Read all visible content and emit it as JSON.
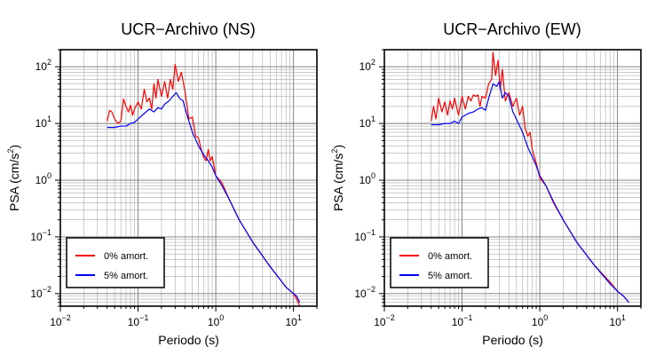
{
  "chart_data": [
    {
      "type": "line",
      "title": "UCR−Archivo (NS)",
      "xlabel": "Periodo (s)",
      "ylabel": {
        "prefix": "PSA (cm/s",
        "sup": "2",
        "suffix": ")"
      },
      "xscale": "log",
      "yscale": "log",
      "xlim": [
        0.01,
        20
      ],
      "ylim": [
        0.006,
        200
      ],
      "grid": true,
      "legend_position": "bottom-left",
      "x_ticks": [
        {
          "value": 0.01,
          "base": "10",
          "exp": "−2"
        },
        {
          "value": 0.1,
          "base": "10",
          "exp": "−1"
        },
        {
          "value": 1,
          "base": "10",
          "exp": "0"
        },
        {
          "value": 10,
          "base": "10",
          "exp": "1"
        }
      ],
      "y_ticks": [
        {
          "value": 0.01,
          "base": "10",
          "exp": "−2"
        },
        {
          "value": 0.1,
          "base": "10",
          "exp": "−1"
        },
        {
          "value": 1,
          "base": "10",
          "exp": "0"
        },
        {
          "value": 10,
          "base": "10",
          "exp": "1"
        },
        {
          "value": 100,
          "base": "10",
          "exp": "2"
        }
      ],
      "series": [
        {
          "name": "0% amort.",
          "color": "#ff0000",
          "points": [
            [
              0.04,
              11
            ],
            [
              0.043,
              17
            ],
            [
              0.046,
              16
            ],
            [
              0.05,
              12
            ],
            [
              0.055,
              10
            ],
            [
              0.06,
              11
            ],
            [
              0.065,
              27
            ],
            [
              0.07,
              20
            ],
            [
              0.075,
              16
            ],
            [
              0.08,
              21
            ],
            [
              0.085,
              14
            ],
            [
              0.09,
              18
            ],
            [
              0.1,
              24
            ],
            [
              0.11,
              18
            ],
            [
              0.12,
              40
            ],
            [
              0.13,
              24
            ],
            [
              0.14,
              28
            ],
            [
              0.15,
              18
            ],
            [
              0.16,
              50
            ],
            [
              0.17,
              28
            ],
            [
              0.18,
              60
            ],
            [
              0.2,
              30
            ],
            [
              0.22,
              55
            ],
            [
              0.24,
              28
            ],
            [
              0.26,
              60
            ],
            [
              0.28,
              40
            ],
            [
              0.3,
              110
            ],
            [
              0.33,
              55
            ],
            [
              0.36,
              80
            ],
            [
              0.4,
              38
            ],
            [
              0.45,
              12
            ],
            [
              0.5,
              13
            ],
            [
              0.55,
              6
            ],
            [
              0.6,
              5.5
            ],
            [
              0.65,
              3.5
            ],
            [
              0.7,
              2.5
            ],
            [
              0.75,
              2.2
            ],
            [
              0.8,
              3.5
            ],
            [
              0.85,
              2.2
            ],
            [
              0.9,
              2.6
            ],
            [
              1,
              1.2
            ],
            [
              1.2,
              0.9
            ],
            [
              1.5,
              0.45
            ],
            [
              2,
              0.2
            ],
            [
              3,
              0.08
            ],
            [
              5,
              0.03
            ],
            [
              8,
              0.013
            ],
            [
              10,
              0.01
            ],
            [
              11,
              0.008
            ],
            [
              12,
              0.006
            ]
          ]
        },
        {
          "name": "5% amort.",
          "color": "#0000ff",
          "points": [
            [
              0.04,
              8.5
            ],
            [
              0.05,
              8.5
            ],
            [
              0.06,
              9
            ],
            [
              0.07,
              9
            ],
            [
              0.08,
              10
            ],
            [
              0.09,
              10.5
            ],
            [
              0.1,
              12
            ],
            [
              0.12,
              15
            ],
            [
              0.14,
              18
            ],
            [
              0.16,
              16
            ],
            [
              0.18,
              19
            ],
            [
              0.2,
              18
            ],
            [
              0.22,
              22
            ],
            [
              0.25,
              25
            ],
            [
              0.28,
              30
            ],
            [
              0.31,
              35
            ],
            [
              0.34,
              28
            ],
            [
              0.38,
              25
            ],
            [
              0.42,
              15
            ],
            [
              0.5,
              7
            ],
            [
              0.6,
              4
            ],
            [
              0.7,
              2.8
            ],
            [
              0.8,
              2.2
            ],
            [
              0.9,
              1.7
            ],
            [
              1,
              1.2
            ],
            [
              1.2,
              0.8
            ],
            [
              1.5,
              0.45
            ],
            [
              2,
              0.2
            ],
            [
              3,
              0.08
            ],
            [
              5,
              0.03
            ],
            [
              8,
              0.013
            ],
            [
              10,
              0.01
            ],
            [
              11,
              0.009
            ],
            [
              12,
              0.007
            ]
          ]
        }
      ]
    },
    {
      "type": "line",
      "title": "UCR−Archivo (EW)",
      "xlabel": "Periodo (s)",
      "ylabel": {
        "prefix": "PSA (cm/s",
        "sup": "2",
        "suffix": ")"
      },
      "xscale": "log",
      "yscale": "log",
      "xlim": [
        0.01,
        20
      ],
      "ylim": [
        0.006,
        200
      ],
      "grid": true,
      "legend_position": "bottom-left",
      "x_ticks": [
        {
          "value": 0.01,
          "base": "10",
          "exp": "−2"
        },
        {
          "value": 0.1,
          "base": "10",
          "exp": "−1"
        },
        {
          "value": 1,
          "base": "10",
          "exp": "0"
        },
        {
          "value": 10,
          "base": "10",
          "exp": "1"
        }
      ],
      "y_ticks": [
        {
          "value": 0.01,
          "base": "10",
          "exp": "−2"
        },
        {
          "value": 0.1,
          "base": "10",
          "exp": "−1"
        },
        {
          "value": 1,
          "base": "10",
          "exp": "0"
        },
        {
          "value": 10,
          "base": "10",
          "exp": "1"
        },
        {
          "value": 100,
          "base": "10",
          "exp": "2"
        }
      ],
      "series": [
        {
          "name": "0% amort.",
          "color": "#ff0000",
          "points": [
            [
              0.04,
              11
            ],
            [
              0.043,
              20
            ],
            [
              0.046,
              12
            ],
            [
              0.05,
              28
            ],
            [
              0.055,
              16
            ],
            [
              0.06,
              24
            ],
            [
              0.065,
              14
            ],
            [
              0.07,
              25
            ],
            [
              0.075,
              18
            ],
            [
              0.08,
              28
            ],
            [
              0.09,
              14
            ],
            [
              0.1,
              30
            ],
            [
              0.11,
              18
            ],
            [
              0.12,
              30
            ],
            [
              0.13,
              25
            ],
            [
              0.14,
              32
            ],
            [
              0.15,
              30
            ],
            [
              0.16,
              32
            ],
            [
              0.17,
              20
            ],
            [
              0.18,
              30
            ],
            [
              0.2,
              28
            ],
            [
              0.22,
              50
            ],
            [
              0.24,
              60
            ],
            [
              0.25,
              180
            ],
            [
              0.27,
              70
            ],
            [
              0.29,
              130
            ],
            [
              0.31,
              40
            ],
            [
              0.33,
              90
            ],
            [
              0.36,
              25
            ],
            [
              0.4,
              35
            ],
            [
              0.45,
              20
            ],
            [
              0.5,
              28
            ],
            [
              0.55,
              14
            ],
            [
              0.6,
              20
            ],
            [
              0.65,
              8
            ],
            [
              0.7,
              6
            ],
            [
              0.75,
              7
            ],
            [
              0.8,
              3.5
            ],
            [
              0.85,
              2.6
            ],
            [
              0.9,
              2
            ],
            [
              1,
              1.1
            ],
            [
              1.2,
              0.8
            ],
            [
              1.5,
              0.4
            ],
            [
              2,
              0.2
            ],
            [
              3,
              0.08
            ],
            [
              5,
              0.032
            ],
            [
              8,
              0.016
            ],
            [
              10,
              0.011
            ],
            [
              12,
              0.009
            ],
            [
              14,
              0.007
            ]
          ]
        },
        {
          "name": "5% amort.",
          "color": "#0000ff",
          "points": [
            [
              0.04,
              9.5
            ],
            [
              0.05,
              9.5
            ],
            [
              0.06,
              10
            ],
            [
              0.07,
              10
            ],
            [
              0.08,
              11
            ],
            [
              0.09,
              10
            ],
            [
              0.1,
              13
            ],
            [
              0.12,
              15
            ],
            [
              0.14,
              16
            ],
            [
              0.16,
              18
            ],
            [
              0.18,
              19
            ],
            [
              0.2,
              17
            ],
            [
              0.22,
              28
            ],
            [
              0.25,
              50
            ],
            [
              0.28,
              45
            ],
            [
              0.3,
              55
            ],
            [
              0.33,
              28
            ],
            [
              0.36,
              35
            ],
            [
              0.4,
              30
            ],
            [
              0.45,
              16
            ],
            [
              0.5,
              12
            ],
            [
              0.6,
              7
            ],
            [
              0.7,
              3.8
            ],
            [
              0.8,
              2.6
            ],
            [
              0.9,
              1.8
            ],
            [
              1,
              1.2
            ],
            [
              1.2,
              0.8
            ],
            [
              1.5,
              0.42
            ],
            [
              2,
              0.2
            ],
            [
              3,
              0.08
            ],
            [
              5,
              0.032
            ],
            [
              8,
              0.015
            ],
            [
              10,
              0.011
            ],
            [
              12,
              0.009
            ],
            [
              14,
              0.007
            ]
          ]
        }
      ]
    }
  ]
}
